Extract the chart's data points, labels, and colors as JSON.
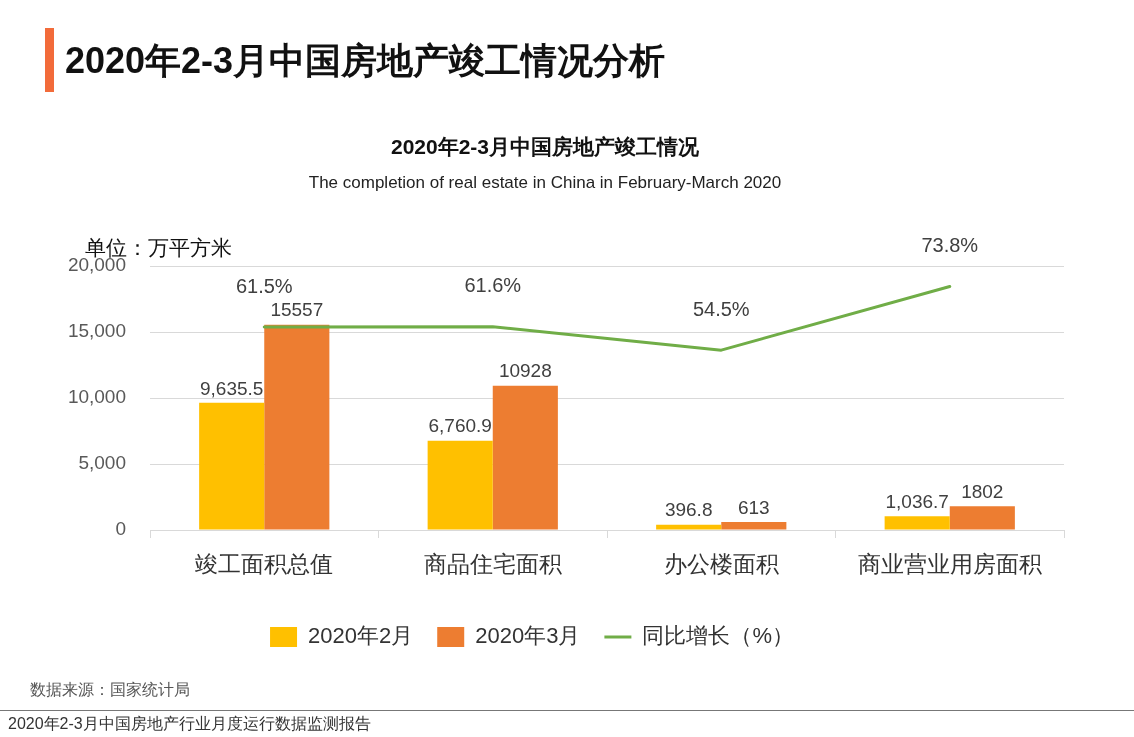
{
  "chart_data": {
    "type": "bar",
    "title": "2020年2-3月中国房地产竣工情况",
    "subtitle": "The completion of real estate in China in February-March 2020",
    "ylabel": "单位：万平方米",
    "annotations": [
      "2020年2-3月中国房地产竣工情况分析",
      "数据来源：国家统计局",
      "2020年2-3月中国房地产行业月度运行数据监测报告"
    ],
    "categories": [
      "竣工面积总值",
      "商品住宅面积",
      "办公楼面积",
      "商业营业用房面积"
    ],
    "series": [
      {
        "name": "2020年2月",
        "color": "#ffc000",
        "values": [
          9635.5,
          6760.9,
          396.8,
          1036.7
        ],
        "value_labels": [
          "9,635.5",
          "6,760.9",
          "396.8",
          "1,036.7"
        ]
      },
      {
        "name": "2020年3月",
        "color": "#ed7d31",
        "values": [
          15557,
          10928,
          613,
          1802
        ],
        "value_labels": [
          "15557",
          "10928",
          "613",
          "1802"
        ]
      },
      {
        "name": "同比增长（%）",
        "type": "line",
        "axis": "y2",
        "color": "#70ad47",
        "values": [
          61.5,
          61.6,
          54.5,
          73.8
        ],
        "value_labels": [
          "61.5%",
          "61.6%",
          "54.5%",
          "73.8%"
        ]
      }
    ],
    "ylim": [
      0,
      20000
    ],
    "yticks": [
      0,
      {
        "value": 5000,
        "label": "5,000"
      },
      {
        "value": 10000,
        "label": "10,000"
      },
      {
        "value": 15000,
        "label": "15,000"
      },
      {
        "value": 20000,
        "label": "20,000"
      }
    ],
    "y2lim": [
      0,
      80
    ],
    "grid": "y",
    "legend": "bottom"
  }
}
